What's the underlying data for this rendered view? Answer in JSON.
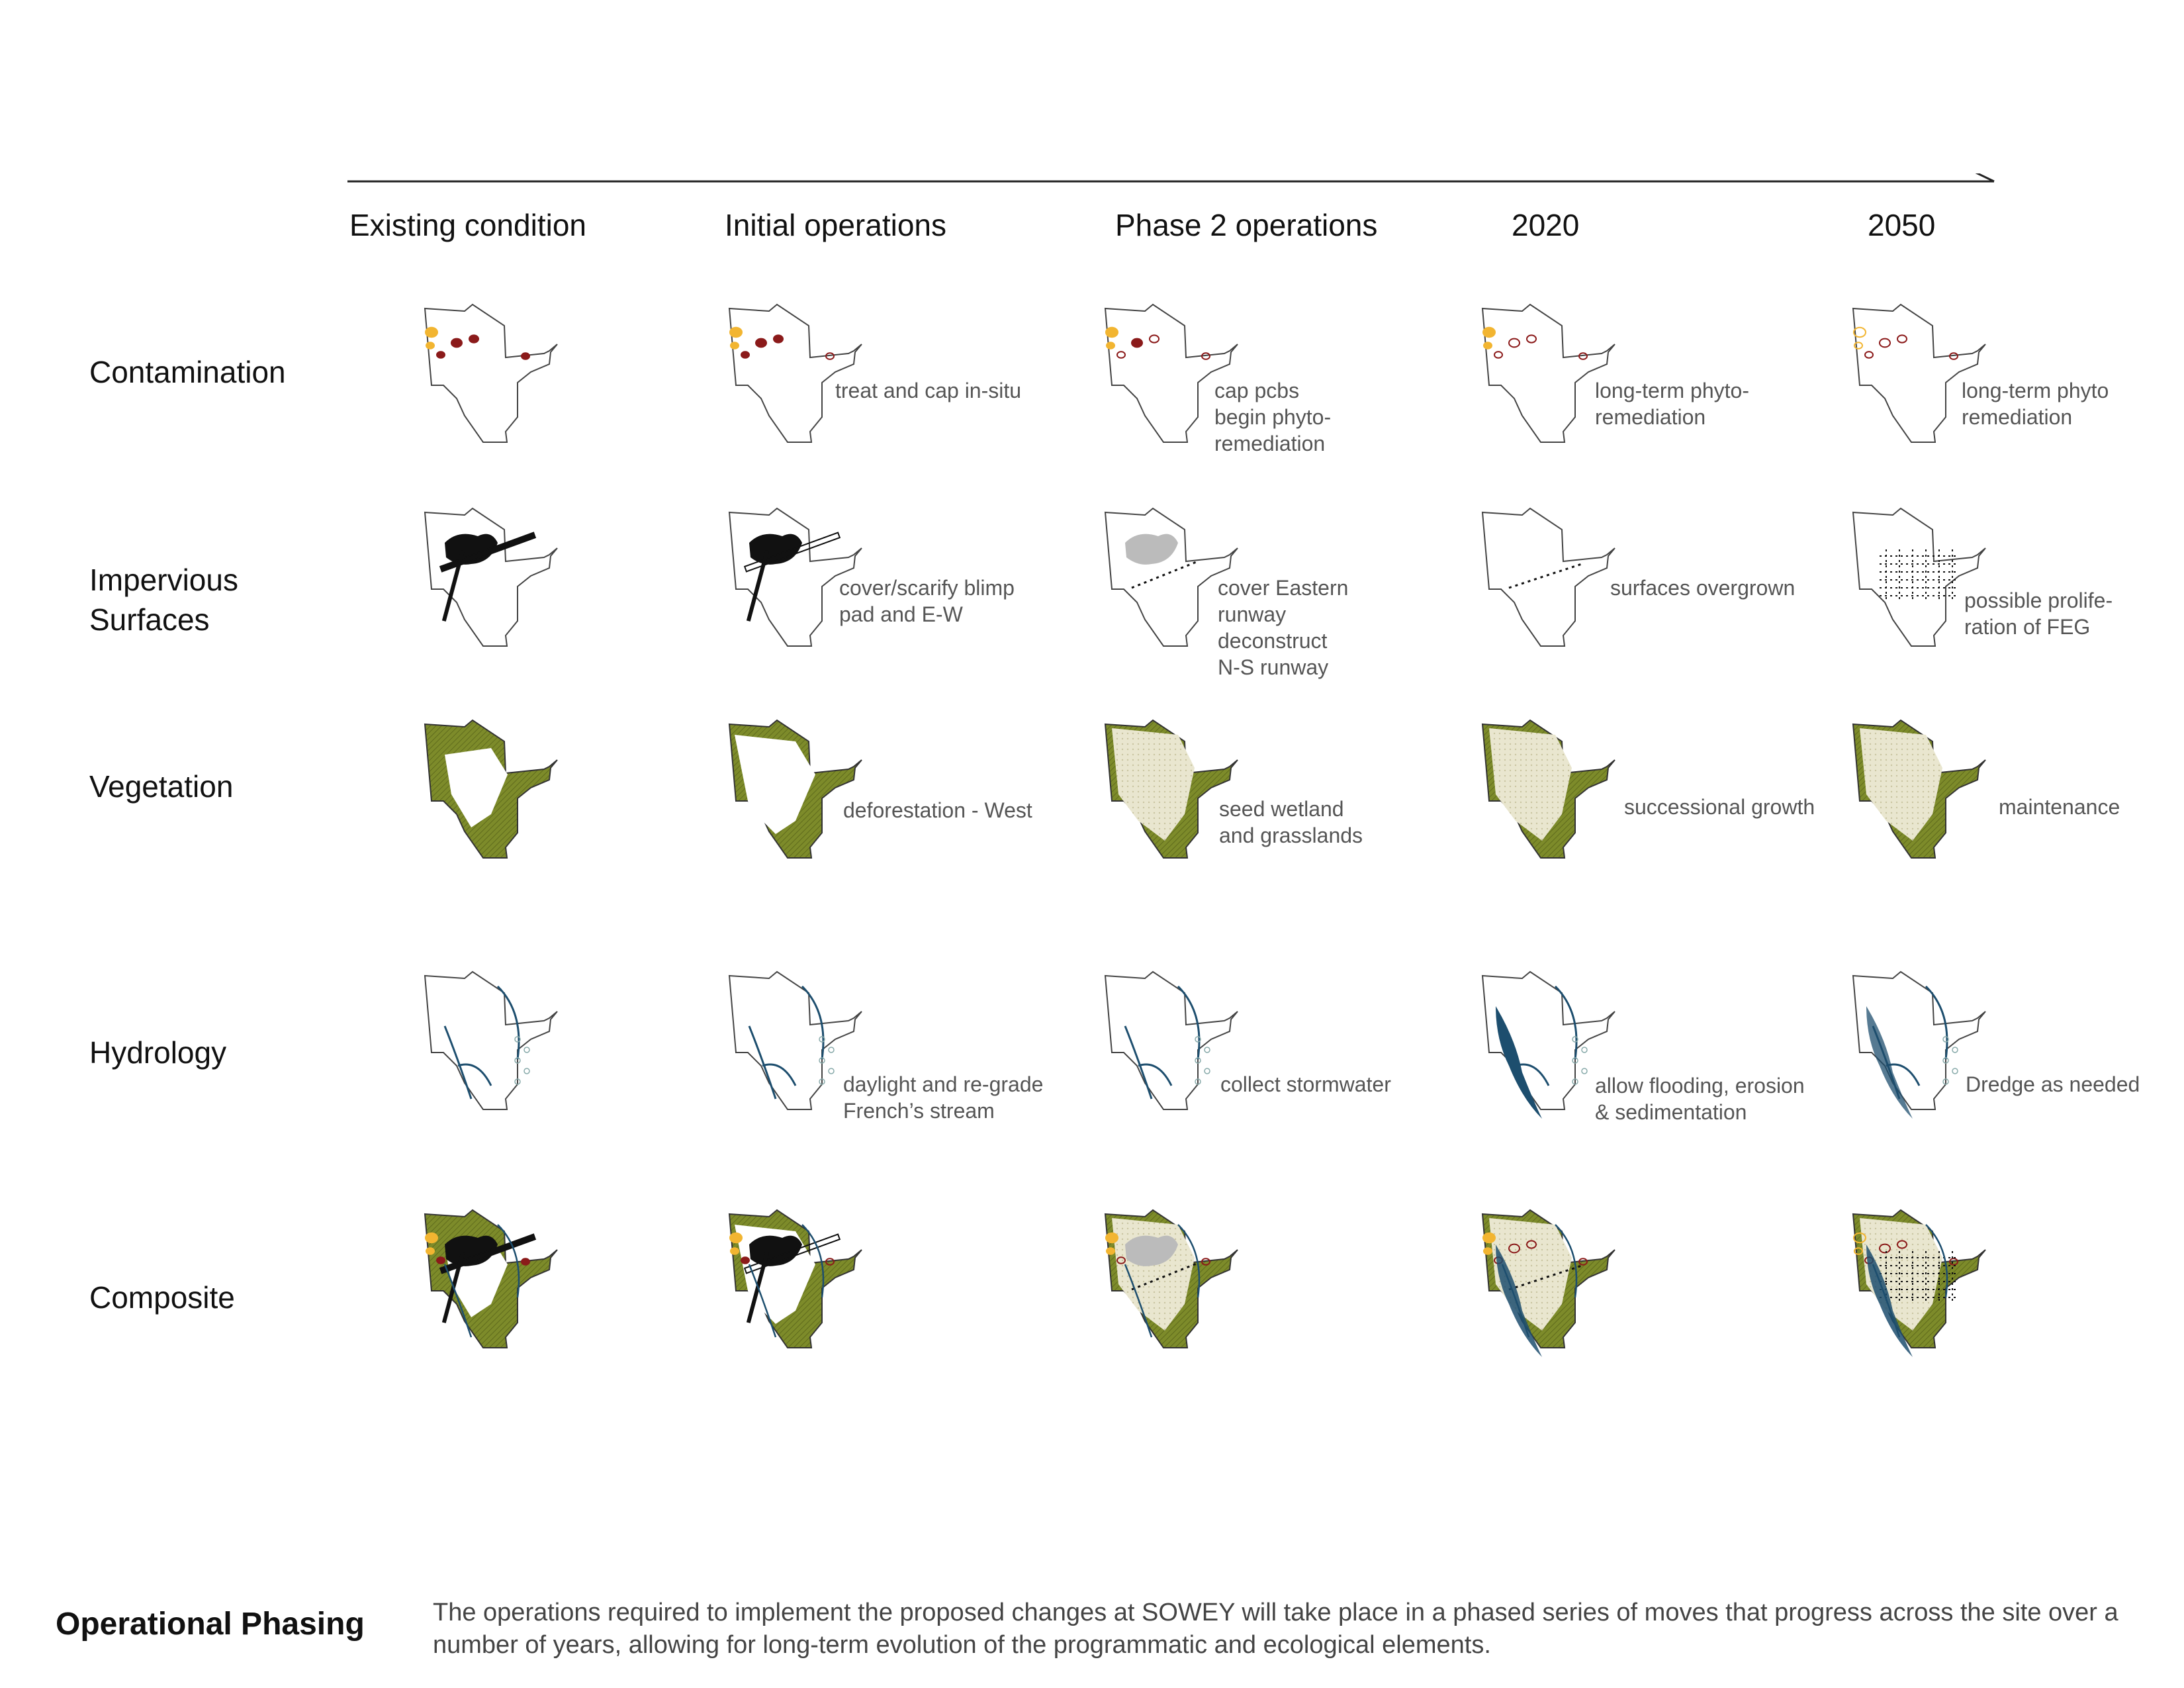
{
  "timeline": {
    "phases": [
      "Existing condition",
      "Initial operations",
      "Phase 2 operations",
      "2020",
      "2050"
    ]
  },
  "layers": [
    "Contamination",
    "Impervious\nSurfaces",
    "Vegetation",
    "Hydrology",
    "Composite"
  ],
  "notes": {
    "contamination": [
      "",
      "treat and cap in-situ",
      "cap pcbs\nbegin phyto-\nremediation",
      "long-term phyto-\nremediation",
      "long-term phyto\nremediation"
    ],
    "impervious": [
      "",
      "cover/scarify blimp\npad and E-W",
      "cover Eastern\nrunway\ndeconstruct\nN-S runway",
      "surfaces  overgrown",
      "possible prolife-\nration of FEG"
    ],
    "vegetation": [
      "",
      "deforestation - West",
      "seed wetland\nand grasslands",
      "successional growth",
      "maintenance"
    ],
    "hydrology": [
      "",
      "daylight and re-grade\nFrench’s stream",
      "collect stormwater",
      "allow flooding, erosion\n& sedimentation",
      "Dredge as needed"
    ]
  },
  "footer": {
    "title": "Operational Phasing",
    "body": "The operations required to implement the proposed changes at SOWEY will take place in a phased series of moves that progress across the site over a number of years, allowing for long-term evolution of the programmatic and ecological elements."
  },
  "colors": {
    "vegetation_dark": "#7d8b2a",
    "vegetation_light": "#e9e6cf",
    "contamination": "#8b1a1a",
    "contamination_light": "#f2b531",
    "water": "#1d4e6e",
    "impervious": "#111111"
  }
}
